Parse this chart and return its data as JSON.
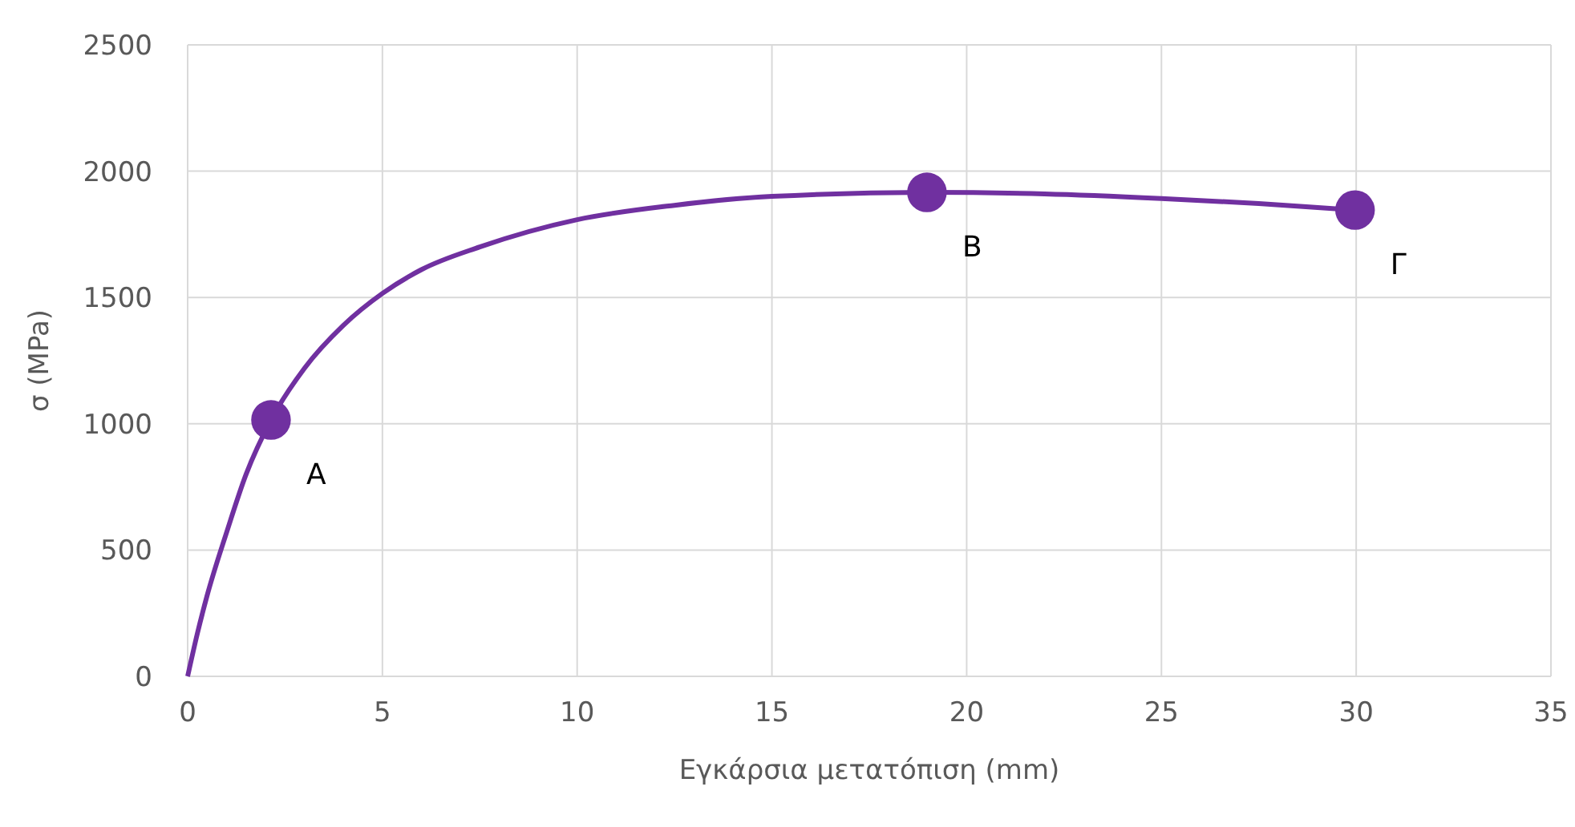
{
  "chart_data": {
    "type": "line",
    "xlabel": "Εγκάρσια μετατόπιση (mm)",
    "ylabel": "σ (MPa)",
    "xlim": [
      0,
      35
    ],
    "ylim": [
      0,
      2500
    ],
    "xticks": [
      0,
      5,
      10,
      15,
      20,
      25,
      30,
      35
    ],
    "yticks": [
      0,
      500,
      1000,
      1500,
      2000,
      2500
    ],
    "grid": true,
    "series": [
      {
        "color": "#7030a0",
        "marker": "none",
        "x": [
          0,
          0.25,
          0.5,
          1,
          1.5,
          2.14,
          3,
          4,
          5,
          6,
          7.5,
          10,
          12.5,
          15,
          18.98,
          22,
          25,
          27.5,
          29.97
        ],
        "values": [
          0,
          170,
          320,
          570,
          800,
          1015,
          1220,
          1390,
          1516,
          1610,
          1700,
          1808,
          1865,
          1900,
          1916,
          1910,
          1892,
          1872,
          1846
        ]
      },
      {
        "type": "scatter",
        "color": "#7030a0",
        "marker": "circle",
        "x": [
          2.14,
          18.98,
          29.97
        ],
        "values": [
          1015,
          1916,
          1846
        ]
      }
    ],
    "annotations": [
      {
        "text": "Α",
        "x": 2.14,
        "y": 1015
      },
      {
        "text": "Β",
        "x": 18.98,
        "y": 1916
      },
      {
        "text": "Γ",
        "x": 29.97,
        "y": 1846
      }
    ]
  }
}
